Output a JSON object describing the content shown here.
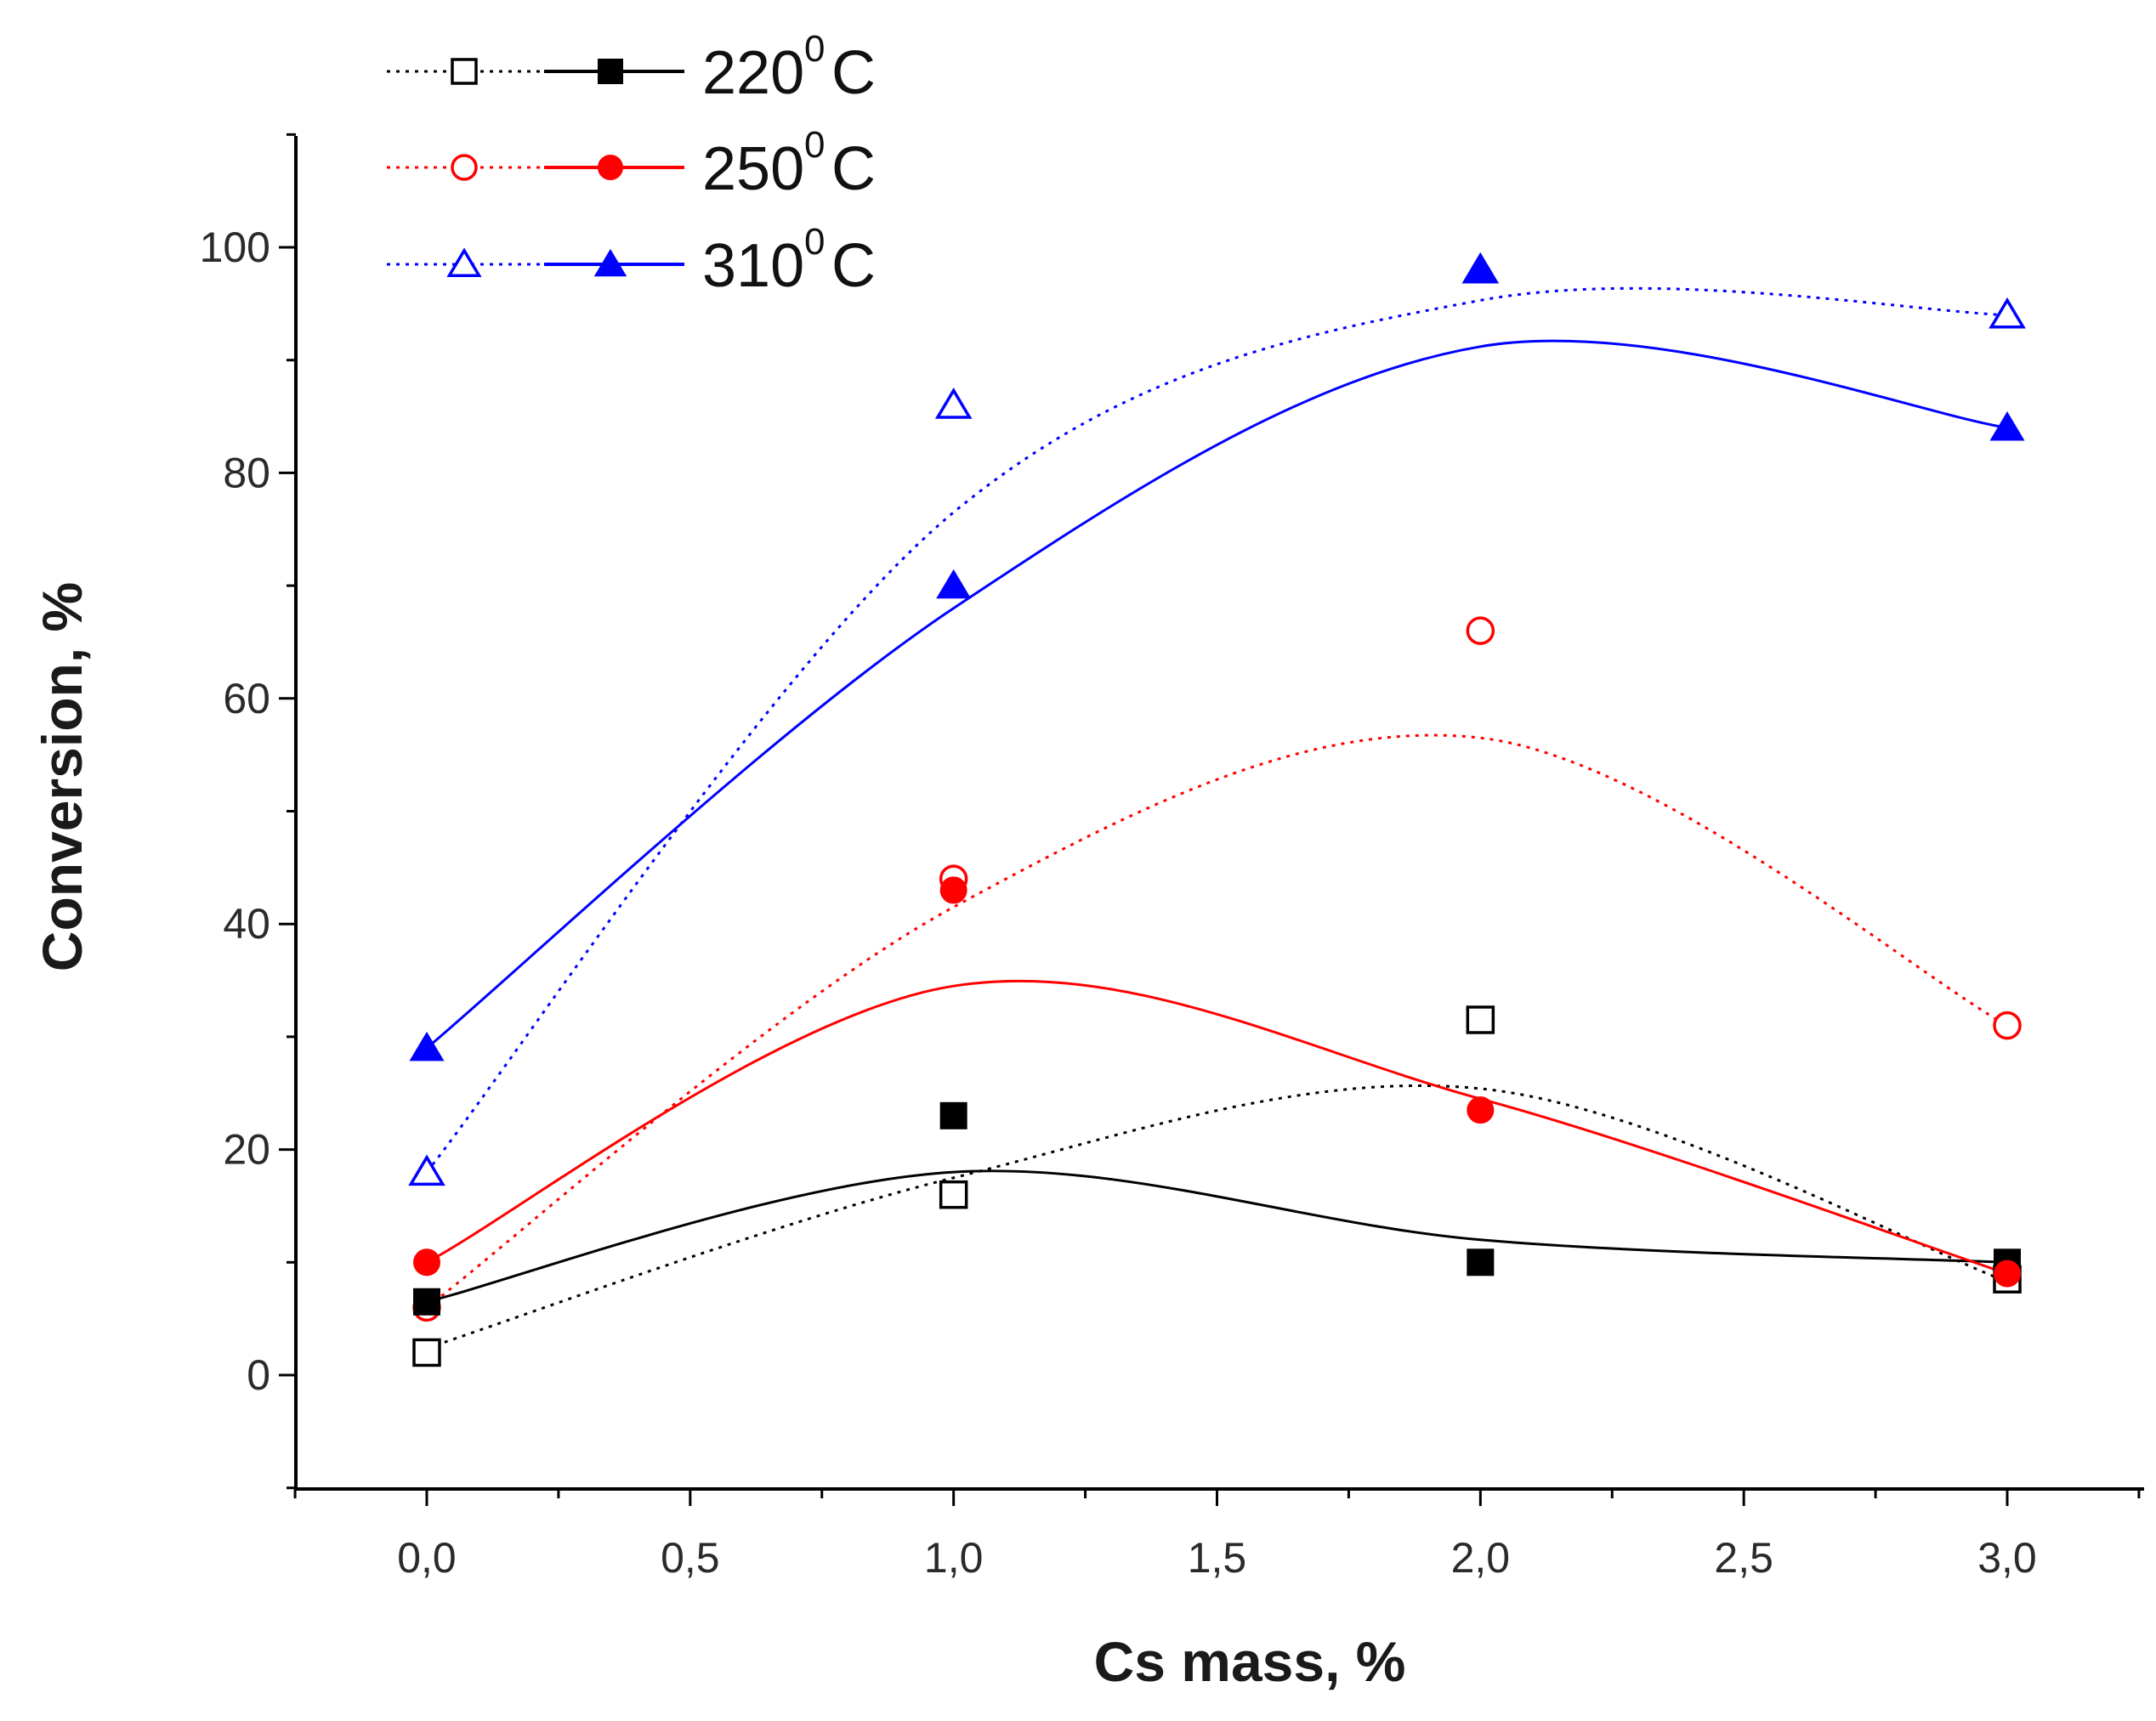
{
  "chart_data": {
    "type": "scatter",
    "xlabel": "Cs mass, %",
    "ylabel": "Conversion, %",
    "xlim": [
      -0.25,
      3.25
    ],
    "ylim": [
      -10,
      110
    ],
    "x_ticks": [
      0.0,
      0.5,
      1.0,
      1.5,
      2.0,
      2.5,
      3.0
    ],
    "x_tick_labels": [
      "0,0",
      "0,5",
      "1,0",
      "1,5",
      "2,0",
      "2,5",
      "3,0"
    ],
    "y_ticks": [
      0,
      20,
      40,
      60,
      80,
      100
    ],
    "y_tick_labels": [
      "0",
      "20",
      "40",
      "60",
      "80",
      "100"
    ],
    "grid": false,
    "legend_position": "top-left, outside plot",
    "x": [
      0,
      1,
      2,
      3
    ],
    "series": [
      {
        "name": "220 °C open (dotted fit)",
        "group": "220",
        "color": "#000000",
        "marker": "square",
        "filled": false,
        "line": "dotted",
        "values": [
          2,
          16,
          31.5,
          8.5
        ],
        "fit": [
          2.4,
          17.5,
          25.4,
          8.3
        ]
      },
      {
        "name": "220 °C filled (solid fit)",
        "group": "220",
        "color": "#000000",
        "marker": "square",
        "filled": true,
        "line": "solid",
        "values": [
          6.5,
          23,
          10,
          10
        ],
        "fit": [
          6.5,
          18,
          12,
          10
        ]
      },
      {
        "name": "250 °C open (dotted fit)",
        "group": "250",
        "color": "#ff0000",
        "marker": "circle",
        "filled": false,
        "line": "dotted",
        "values": [
          6,
          44,
          66,
          31
        ],
        "fit": [
          6,
          41.5,
          56.5,
          31
        ]
      },
      {
        "name": "250 °C filled (solid fit)",
        "group": "250",
        "color": "#ff0000",
        "marker": "circle",
        "filled": true,
        "line": "solid",
        "values": [
          10,
          43,
          23.5,
          9
        ],
        "fit": [
          10,
          34.5,
          24.5,
          9
        ]
      },
      {
        "name": "310 °C open (dotted fit)",
        "group": "310",
        "color": "#0000ff",
        "marker": "triangle",
        "filled": false,
        "line": "dotted",
        "values": [
          18,
          86,
          98,
          94
        ],
        "fit": [
          18,
          76.5,
          95.3,
          94
        ]
      },
      {
        "name": "310 °C filled (solid fit)",
        "group": "310",
        "color": "#0000ff",
        "marker": "triangle",
        "filled": true,
        "line": "solid",
        "values": [
          29,
          70,
          98,
          84
        ],
        "fit": [
          29,
          68,
          91.2,
          84
        ]
      }
    ],
    "legend": [
      {
        "group": "220",
        "value": "220",
        "sup": "0",
        "unit": "C"
      },
      {
        "group": "250",
        "value": "250",
        "sup": "0",
        "unit": "C"
      },
      {
        "group": "310",
        "value": "310",
        "sup": "0",
        "unit": "C"
      }
    ]
  }
}
